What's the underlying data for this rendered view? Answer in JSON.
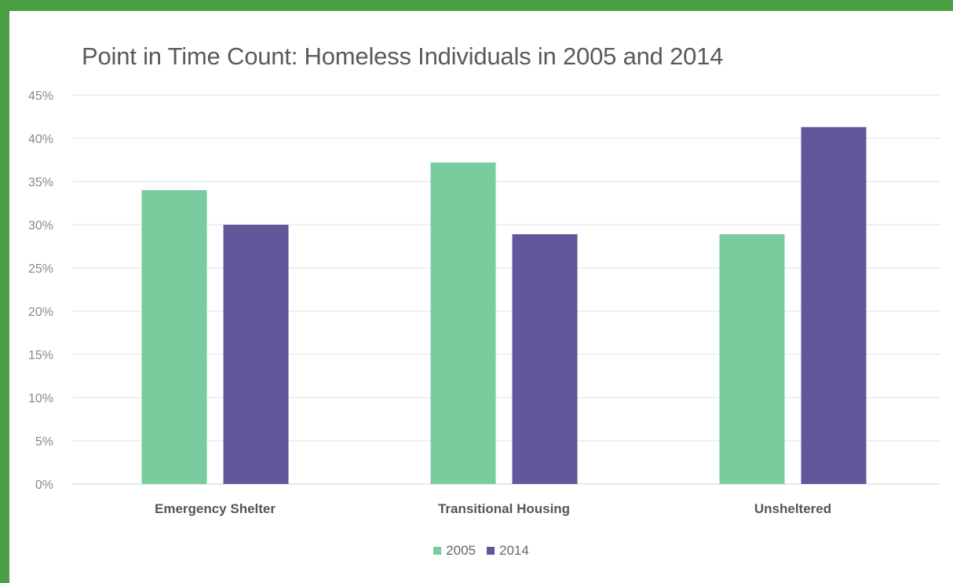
{
  "colors": {
    "frame": "#4a9e44",
    "series_2005": "#78cc9e",
    "series_2014": "#62579b",
    "gridline": "#e2e2e2"
  },
  "chart_data": {
    "type": "bar",
    "title": "Point in Time Count: Homeless Individuals in 2005 and 2014",
    "categories": [
      "Emergency Shelter",
      "Transitional Housing",
      "Unsheltered"
    ],
    "series": [
      {
        "name": "2005",
        "values": [
          0.34,
          0.372,
          0.289
        ],
        "color": "#78cc9e"
      },
      {
        "name": "2014",
        "values": [
          0.3,
          0.289,
          0.413
        ],
        "color": "#62579b"
      }
    ],
    "yticks": [
      {
        "value": 0,
        "label": "0%"
      },
      {
        "value": 0.05,
        "label": "5%"
      },
      {
        "value": 0.1,
        "label": "10%"
      },
      {
        "value": 0.15,
        "label": "15%"
      },
      {
        "value": 0.2,
        "label": "20%"
      },
      {
        "value": 0.25,
        "label": "25%"
      },
      {
        "value": 0.3,
        "label": "30%"
      },
      {
        "value": 0.35,
        "label": "35%"
      },
      {
        "value": 0.4,
        "label": "40%"
      },
      {
        "value": 0.45,
        "label": "45%"
      }
    ],
    "ylim": [
      0,
      0.45
    ],
    "xlabel": "",
    "ylabel": "",
    "grid": true,
    "legend": "bottom-center"
  }
}
